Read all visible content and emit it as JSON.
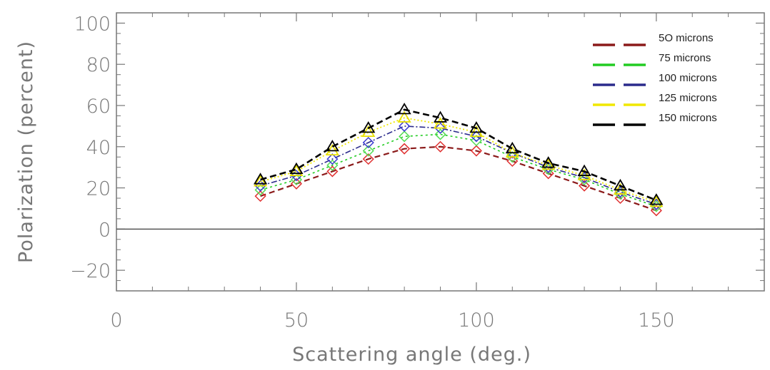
{
  "chart_data": {
    "type": "line",
    "title": "",
    "xlabel": "Scattering angle (deg.)",
    "ylabel": "Polarization (percent)",
    "xlim": [
      0,
      180
    ],
    "ylim": [
      -30,
      105
    ],
    "xticks": [
      0,
      50,
      100,
      150
    ],
    "yticks": [
      -20,
      0,
      20,
      40,
      60,
      80,
      100
    ],
    "grid": false,
    "legend_position": "top-right",
    "zero_line": true,
    "x": [
      40,
      50,
      60,
      70,
      80,
      90,
      100,
      110,
      120,
      130,
      140,
      150
    ],
    "series": [
      {
        "name": "5O microns",
        "color": "#8b1a1a",
        "marker_color": "#e03030",
        "marker": "diamond",
        "values": [
          16,
          22,
          28,
          34,
          39,
          40,
          38,
          33,
          27,
          21,
          15,
          9
        ]
      },
      {
        "name": "75 microns",
        "color": "#22cc22",
        "marker_color": "#55dd55",
        "marker": "diamond",
        "values": [
          19,
          24,
          31,
          38,
          45,
          46,
          43,
          35,
          29,
          24,
          17,
          11
        ]
      },
      {
        "name": "100 microns",
        "color": "#2b2b8c",
        "marker_color": "#3a3ad0",
        "marker": "diamond",
        "values": [
          21,
          26,
          34,
          42,
          50,
          49,
          45,
          37,
          30,
          25,
          18,
          12
        ]
      },
      {
        "name": "125 microns",
        "color": "#f0e800",
        "marker_color": "#e8e000",
        "marker": "triangle",
        "values": [
          23,
          28,
          38,
          47,
          54,
          51,
          47,
          37,
          31,
          26,
          19,
          13
        ]
      },
      {
        "name": "150 microns",
        "color": "#000000",
        "marker_color": "#000000",
        "marker": "triangle",
        "values": [
          24,
          29,
          40,
          49,
          58,
          54,
          49,
          39,
          32,
          28,
          21,
          14
        ]
      }
    ]
  }
}
